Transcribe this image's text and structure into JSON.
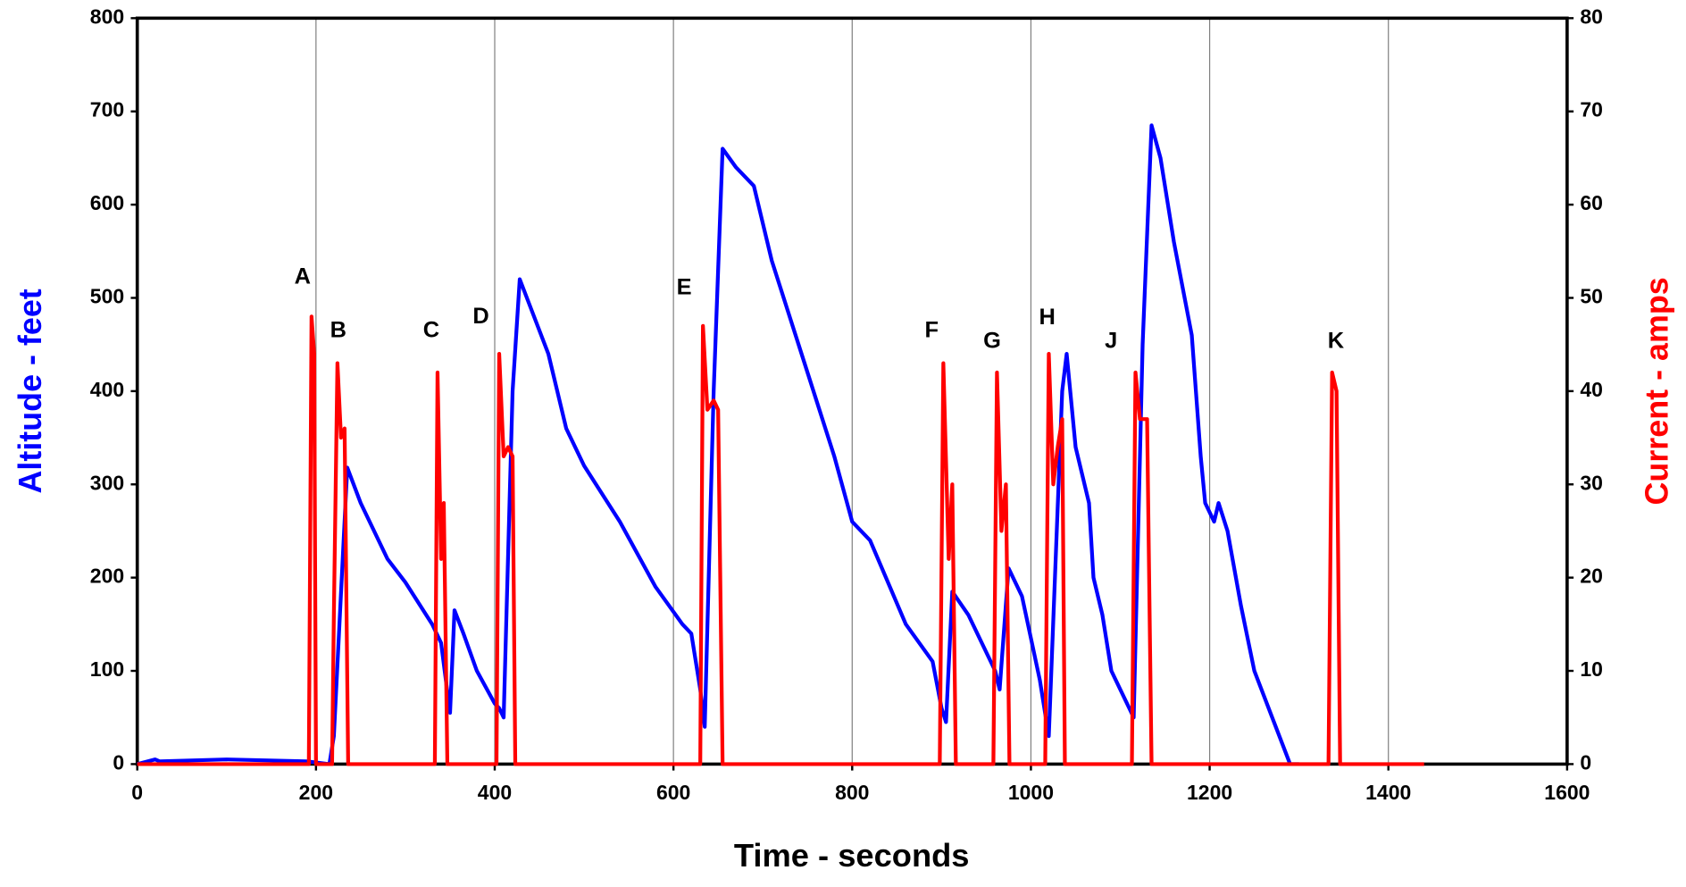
{
  "chart_data": {
    "type": "line",
    "xlabel": "Time - seconds",
    "ylabel": "Altitude - feet",
    "y2label": "Current - amps",
    "xlim": [
      0,
      1600
    ],
    "xticks": [
      0,
      200,
      400,
      600,
      800,
      1000,
      1200,
      1400,
      1600
    ],
    "ylim": [
      0,
      800
    ],
    "yticks": [
      0,
      100,
      200,
      300,
      400,
      500,
      600,
      700,
      800
    ],
    "y2lim": [
      0,
      80
    ],
    "y2ticks": [
      0,
      10,
      20,
      30,
      40,
      50,
      60,
      70,
      80
    ],
    "grid": "x",
    "annotations": [
      "A",
      "B",
      "C",
      "D",
      "E",
      "F",
      "G",
      "H",
      "J",
      "K"
    ],
    "series": [
      {
        "name": "Altitude - feet",
        "color": "#0000ff",
        "axis": "y",
        "x": [
          0,
          20,
          25,
          100,
          190,
          215,
          220,
          235,
          250,
          280,
          300,
          330,
          340,
          350,
          355,
          365,
          380,
          400,
          405,
          410,
          420,
          428,
          440,
          460,
          480,
          500,
          540,
          580,
          610,
          620,
          630,
          635,
          645,
          655,
          670,
          690,
          710,
          740,
          780,
          800,
          820,
          860,
          890,
          900,
          905,
          912,
          930,
          960,
          965,
          975,
          990,
          1010,
          1020,
          1035,
          1040,
          1050,
          1065,
          1070,
          1080,
          1090,
          1110,
          1115,
          1125,
          1135,
          1145,
          1160,
          1170,
          1180,
          1190,
          1195,
          1205,
          1210,
          1220,
          1235,
          1250,
          1270,
          1290,
          1300
        ],
        "values": [
          0,
          5,
          3,
          5,
          3,
          0,
          30,
          318,
          280,
          220,
          195,
          150,
          130,
          55,
          165,
          140,
          100,
          65,
          60,
          50,
          400,
          520,
          490,
          440,
          360,
          320,
          260,
          190,
          150,
          140,
          80,
          40,
          400,
          660,
          640,
          620,
          540,
          450,
          330,
          260,
          240,
          150,
          110,
          60,
          45,
          185,
          160,
          100,
          80,
          210,
          180,
          90,
          30,
          400,
          440,
          340,
          280,
          200,
          160,
          100,
          60,
          50,
          450,
          685,
          650,
          560,
          510,
          460,
          330,
          280,
          260,
          280,
          250,
          170,
          100,
          50,
          0,
          0
        ]
      },
      {
        "name": "Current - amps",
        "color": "#ff0000",
        "axis": "y2",
        "x": [
          0,
          192,
          195,
          198,
          200,
          218,
          220,
          224,
          228,
          232,
          236,
          333,
          336,
          340,
          343,
          347,
          402,
          405,
          410,
          415,
          420,
          423,
          630,
          633,
          638,
          645,
          650,
          655,
          898,
          902,
          908,
          912,
          916,
          958,
          962,
          967,
          972,
          976,
          1016,
          1020,
          1025,
          1030,
          1035,
          1038,
          1113,
          1117,
          1122,
          1130,
          1135,
          1333,
          1337,
          1342,
          1346,
          1440
        ],
        "values": [
          0,
          0,
          48,
          44,
          0,
          0,
          16,
          43,
          35,
          36,
          0,
          0,
          42,
          22,
          28,
          0,
          0,
          44,
          33,
          34,
          33,
          0,
          0,
          47,
          38,
          39,
          38,
          0,
          0,
          43,
          22,
          30,
          0,
          0,
          42,
          25,
          30,
          0,
          0,
          44,
          30,
          34,
          37,
          0,
          0,
          42,
          37,
          37,
          0,
          0,
          42,
          40,
          0,
          0
        ]
      }
    ]
  }
}
